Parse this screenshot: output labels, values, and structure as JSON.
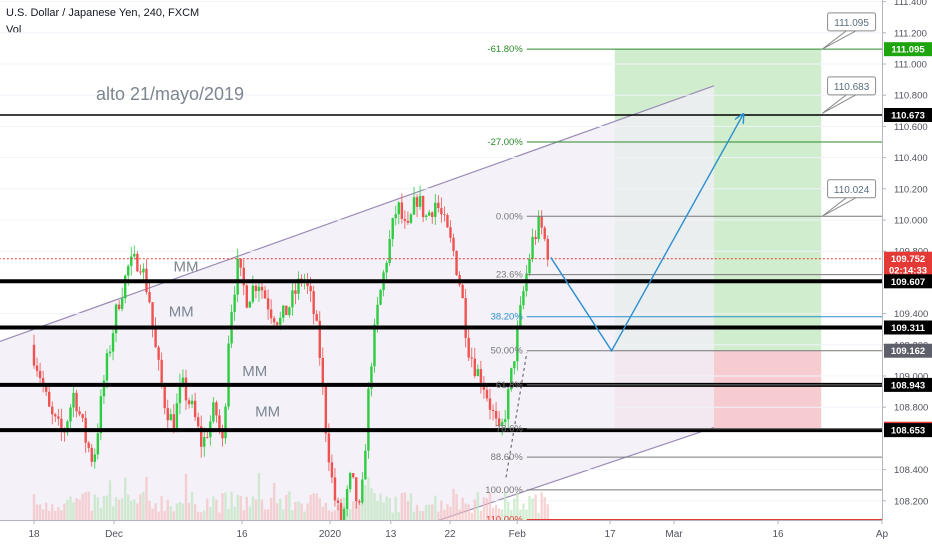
{
  "header": {
    "symbol_line": "U.S. Dollar / Japanese Yen, 240, FXCM",
    "indicator": "Vol"
  },
  "colors": {
    "bull": "#26a69a",
    "bull_bright": "#2ecc40",
    "bear": "#ef5350",
    "fib": "#2a8a2a",
    "channel": "#9b8bb4",
    "projection": "#2a8fd0",
    "target_zone": "#c8eac4",
    "stop_zone": "#f6c3c8"
  },
  "chart_data": {
    "type": "candlestick",
    "instrument": "U.S. Dollar / Japanese Yen",
    "timeframe": "240",
    "source": "FXCM",
    "y_axis": {
      "range": [
        108.03,
        111.42
      ],
      "ticks": [
        111.4,
        111.2,
        111.0,
        110.8,
        110.6,
        110.4,
        110.2,
        110.0,
        109.8,
        109.4,
        109.2,
        109.0,
        108.8,
        108.4,
        108.2
      ],
      "tick_labels": [
        "111.400",
        "111.200",
        "111.000",
        "110.800",
        "110.600",
        "110.400",
        "110.200",
        "110.000",
        "109.800",
        "109.400",
        "109.200",
        "109.000",
        "108.800",
        "108.400",
        "108.200"
      ]
    },
    "x_axis": {
      "labels": [
        "18",
        "Dec",
        "16",
        "2020",
        "13",
        "22",
        "Feb",
        "17",
        "Mar",
        "16",
        "Ap"
      ],
      "label_time_index": [
        0,
        5,
        13,
        18.5,
        22.3,
        26,
        30.2,
        36,
        40,
        46.5,
        53
      ]
    },
    "price_badges": [
      {
        "text": "111.095",
        "value": 111.095,
        "style": "green"
      },
      {
        "text": "110.673",
        "value": 110.673,
        "style": "black"
      },
      {
        "text": "109.752",
        "value": 109.752,
        "style": "red"
      },
      {
        "text": "02:14:33",
        "value": 109.68,
        "style": "red"
      },
      {
        "text": "109.607",
        "value": 109.607,
        "style": "black"
      },
      {
        "text": "109.311",
        "value": 109.311,
        "style": "black"
      },
      {
        "text": "109.162",
        "value": 109.162,
        "style": "gray"
      },
      {
        "text": "108.943",
        "value": 108.943,
        "style": "black"
      },
      {
        "text": "108.662",
        "value": 108.662,
        "style": "red"
      },
      {
        "text": "108.653",
        "value": 108.653,
        "style": "black"
      }
    ],
    "horizontal_levels": [
      {
        "value": 110.673,
        "color": "#000000",
        "width": 1.5,
        "from_t": 0,
        "to_t": 53
      },
      {
        "value": 109.607,
        "color": "#000000",
        "width": 4,
        "from_t": 0,
        "to_t": 53
      },
      {
        "value": 109.311,
        "color": "#000000",
        "width": 4,
        "from_t": 0,
        "to_t": 53
      },
      {
        "value": 108.943,
        "color": "#000000",
        "width": 4,
        "from_t": 0,
        "to_t": 53
      },
      {
        "value": 108.653,
        "color": "#000000",
        "width": 4,
        "from_t": 0,
        "to_t": 53
      },
      {
        "value": 109.752,
        "color": "#e53935",
        "width": 1,
        "dash": true,
        "from_t": 0,
        "to_t": 53
      }
    ],
    "fib_levels": [
      {
        "label": "-61.80%",
        "value": 111.095,
        "color": "#2a8a2a"
      },
      {
        "label": "-27.00%",
        "value": 110.5,
        "color": "#2a8a2a"
      },
      {
        "label": "0.00%",
        "value": 110.024,
        "color": "#787878"
      },
      {
        "label": "23.6%",
        "value": 109.65,
        "color": "#787878"
      },
      {
        "label": "38.20%",
        "value": 109.38,
        "color": "#2a8fd0"
      },
      {
        "label": "50.00%",
        "value": 109.162,
        "color": "#787878"
      },
      {
        "label": "61.8%",
        "value": 108.943,
        "color": "#787878"
      },
      {
        "label": "78.6%",
        "value": 108.662,
        "color": "#787878"
      },
      {
        "label": "88.60%",
        "value": 108.48,
        "color": "#787878"
      },
      {
        "label": "100.00%",
        "value": 108.27,
        "color": "#787878"
      },
      {
        "label": "110.00%",
        "value": 108.08,
        "color": "#e53935"
      }
    ],
    "fib_span_t": [
      30.8,
      53
    ],
    "channel": {
      "upper": [
        [
          0,
          109.3
        ],
        [
          42.5,
          110.86
        ]
      ],
      "lower": [
        [
          24,
          108.03
        ],
        [
          42.5,
          108.67
        ]
      ],
      "fill": "#f1eef8"
    },
    "zones": [
      {
        "name": "target",
        "t0": 36.3,
        "t1": 49.2,
        "y_top": 111.095,
        "y_bottom": 109.162,
        "color": "#c8eac4"
      },
      {
        "name": "stop",
        "t0": 36.3,
        "t1": 49.2,
        "y_top": 109.162,
        "y_bottom": 108.662,
        "color": "#f6c3c8"
      }
    ],
    "projection_path": [
      [
        32.3,
        109.76
      ],
      [
        36.1,
        109.162
      ],
      [
        44.3,
        110.673
      ]
    ],
    "callouts": [
      {
        "text": "111.095",
        "value": 111.095,
        "anchor_t": 49.2,
        "box_t": 51.1,
        "box_y": 111.27
      },
      {
        "text": "110.683",
        "value": 110.683,
        "anchor_t": 49.2,
        "box_t": 51.1,
        "box_y": 110.86
      },
      {
        "text": "110.024",
        "value": 110.024,
        "anchor_t": 49.2,
        "box_t": 51.1,
        "box_y": 110.2
      }
    ],
    "annotations": [
      {
        "text": "alto 21/mayo/2019",
        "t": 8.5,
        "value": 110.77,
        "size": 18
      },
      {
        "text": "MM",
        "t": 9.5,
        "value": 109.67,
        "size": 15
      },
      {
        "text": "MM",
        "t": 9.2,
        "value": 109.38,
        "size": 15
      },
      {
        "text": "MM",
        "t": 13.8,
        "value": 109.0,
        "size": 15
      },
      {
        "text": "MM",
        "t": 14.6,
        "value": 108.74,
        "size": 15
      }
    ],
    "price_path": [
      [
        0,
        109.2
      ],
      [
        0.6,
        109.0
      ],
      [
        1.2,
        108.75
      ],
      [
        2.0,
        108.62
      ],
      [
        2.7,
        108.9
      ],
      [
        3.4,
        108.6
      ],
      [
        3.9,
        108.45
      ],
      [
        4.6,
        109.0
      ],
      [
        5.4,
        109.45
      ],
      [
        6.1,
        109.7
      ],
      [
        6.8,
        109.75
      ],
      [
        7.4,
        109.5
      ],
      [
        7.7,
        109.22
      ],
      [
        8.3,
        108.85
      ],
      [
        8.9,
        108.68
      ],
      [
        9.4,
        108.95
      ],
      [
        10.1,
        108.78
      ],
      [
        10.7,
        108.55
      ],
      [
        11.5,
        108.8
      ],
      [
        12.0,
        108.55
      ],
      [
        12.4,
        109.35
      ],
      [
        12.9,
        109.7
      ],
      [
        13.5,
        109.5
      ],
      [
        14.2,
        109.62
      ],
      [
        15.0,
        109.42
      ],
      [
        15.6,
        109.35
      ],
      [
        16.3,
        109.48
      ],
      [
        17.0,
        109.65
      ],
      [
        17.6,
        109.45
      ],
      [
        18.0,
        109.2
      ],
      [
        18.4,
        108.7
      ],
      [
        18.9,
        108.25
      ],
      [
        19.4,
        108.05
      ],
      [
        20.0,
        108.35
      ],
      [
        20.6,
        108.1
      ],
      [
        21.2,
        109.05
      ],
      [
        21.7,
        109.45
      ],
      [
        22.3,
        109.8
      ],
      [
        22.9,
        110.1
      ],
      [
        23.5,
        109.9
      ],
      [
        24.1,
        110.15
      ],
      [
        24.7,
        110.02
      ],
      [
        25.3,
        110.12
      ],
      [
        25.9,
        109.95
      ],
      [
        26.4,
        109.8
      ],
      [
        26.9,
        109.55
      ],
      [
        27.3,
        109.2
      ],
      [
        27.8,
        109.05
      ],
      [
        28.3,
        108.95
      ],
      [
        28.8,
        108.78
      ],
      [
        29.3,
        108.6
      ],
      [
        29.8,
        108.85
      ],
      [
        30.3,
        109.2
      ],
      [
        30.8,
        109.55
      ],
      [
        31.3,
        109.85
      ],
      [
        31.8,
        109.98
      ],
      [
        32.3,
        109.8
      ]
    ],
    "volume_max_ratio": 0.1
  }
}
